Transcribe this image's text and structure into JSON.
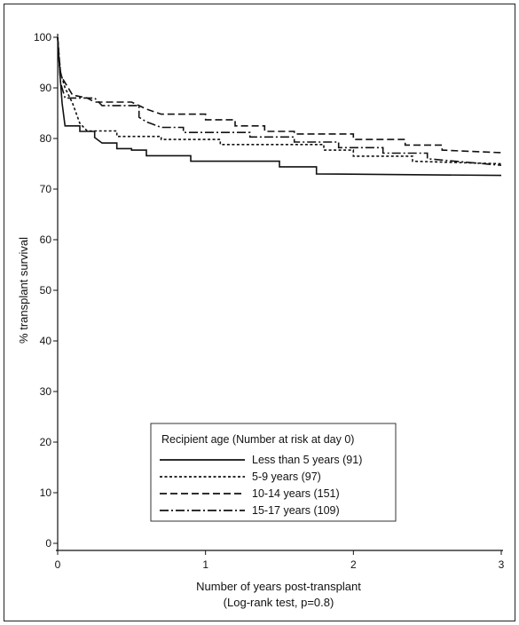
{
  "chart_data": {
    "type": "line",
    "title": "",
    "xlabel": "Number of years post-transplant",
    "xlabel_note": "(Log-rank test, p=0.8)",
    "ylabel": "% transplant survival",
    "xlim": [
      0,
      3
    ],
    "ylim": [
      0,
      100
    ],
    "x_ticks": [
      "0",
      "1",
      "2",
      "3"
    ],
    "y_ticks": [
      "0",
      "10",
      "20",
      "30",
      "40",
      "50",
      "60",
      "70",
      "80",
      "90",
      "100"
    ],
    "grid": false,
    "legend": {
      "position": "bottom-center",
      "title": "Recipient age (Number at risk at day 0)"
    },
    "series": [
      {
        "name": "Less than 5 years (91)",
        "style": "solid",
        "points": [
          [
            0,
            100
          ],
          [
            0.01,
            95
          ],
          [
            0.02,
            91
          ],
          [
            0.03,
            87
          ],
          [
            0.05,
            82.5
          ],
          [
            0.15,
            82.5
          ],
          [
            0.15,
            81.4
          ],
          [
            0.25,
            81.4
          ],
          [
            0.25,
            80.2
          ],
          [
            0.3,
            79.1
          ],
          [
            0.4,
            79.1
          ],
          [
            0.4,
            78.0
          ],
          [
            0.5,
            78.0
          ],
          [
            0.5,
            77.7
          ],
          [
            0.6,
            77.7
          ],
          [
            0.6,
            76.6
          ],
          [
            0.9,
            76.6
          ],
          [
            0.9,
            75.5
          ],
          [
            1.5,
            75.5
          ],
          [
            1.5,
            74.4
          ],
          [
            1.75,
            74.4
          ],
          [
            1.75,
            73.0
          ],
          [
            3.0,
            72.7
          ]
        ]
      },
      {
        "name": "5-9 years (97)",
        "style": "dotted",
        "points": [
          [
            0,
            100
          ],
          [
            0.01,
            96
          ],
          [
            0.02,
            93
          ],
          [
            0.05,
            90
          ],
          [
            0.1,
            87
          ],
          [
            0.15,
            83
          ],
          [
            0.2,
            81.5
          ],
          [
            0.4,
            81.5
          ],
          [
            0.4,
            80.4
          ],
          [
            0.7,
            80.4
          ],
          [
            0.7,
            79.8
          ],
          [
            1.1,
            79.8
          ],
          [
            1.1,
            78.8
          ],
          [
            1.8,
            78.8
          ],
          [
            1.8,
            77.7
          ],
          [
            2.0,
            77.7
          ],
          [
            2.0,
            76.5
          ],
          [
            2.4,
            76.5
          ],
          [
            2.4,
            75.5
          ],
          [
            3.0,
            75.0
          ]
        ]
      },
      {
        "name": "10-14 years (151)",
        "style": "dashed",
        "points": [
          [
            0,
            100
          ],
          [
            0.01,
            96
          ],
          [
            0.02,
            93
          ],
          [
            0.03,
            92
          ],
          [
            0.1,
            88.6
          ],
          [
            0.2,
            88.0
          ],
          [
            0.25,
            87.2
          ],
          [
            0.5,
            87.2
          ],
          [
            0.55,
            86.5
          ],
          [
            0.6,
            85.8
          ],
          [
            0.7,
            84.8
          ],
          [
            1.0,
            84.8
          ],
          [
            1.0,
            83.7
          ],
          [
            1.2,
            83.7
          ],
          [
            1.2,
            82.5
          ],
          [
            1.4,
            82.5
          ],
          [
            1.4,
            81.4
          ],
          [
            1.6,
            81.4
          ],
          [
            1.6,
            80.9
          ],
          [
            2.0,
            80.9
          ],
          [
            2.0,
            79.8
          ],
          [
            2.35,
            79.8
          ],
          [
            2.35,
            78.7
          ],
          [
            2.6,
            78.7
          ],
          [
            2.6,
            77.7
          ],
          [
            3.0,
            77.2
          ]
        ]
      },
      {
        "name": "15-17 years (109)",
        "style": "dashdot",
        "points": [
          [
            0,
            100
          ],
          [
            0.01,
            95
          ],
          [
            0.02,
            91
          ],
          [
            0.05,
            88
          ],
          [
            0.25,
            88
          ],
          [
            0.3,
            86.5
          ],
          [
            0.55,
            86.5
          ],
          [
            0.55,
            84.2
          ],
          [
            0.6,
            83.3
          ],
          [
            0.7,
            82.2
          ],
          [
            0.85,
            82.2
          ],
          [
            0.85,
            81.2
          ],
          [
            1.3,
            81.2
          ],
          [
            1.3,
            80.3
          ],
          [
            1.6,
            80.3
          ],
          [
            1.6,
            79.3
          ],
          [
            1.9,
            79.3
          ],
          [
            1.9,
            78.2
          ],
          [
            2.2,
            78.2
          ],
          [
            2.2,
            77.1
          ],
          [
            2.5,
            77.1
          ],
          [
            2.5,
            76.0
          ],
          [
            3.0,
            74.7
          ]
        ]
      }
    ]
  }
}
